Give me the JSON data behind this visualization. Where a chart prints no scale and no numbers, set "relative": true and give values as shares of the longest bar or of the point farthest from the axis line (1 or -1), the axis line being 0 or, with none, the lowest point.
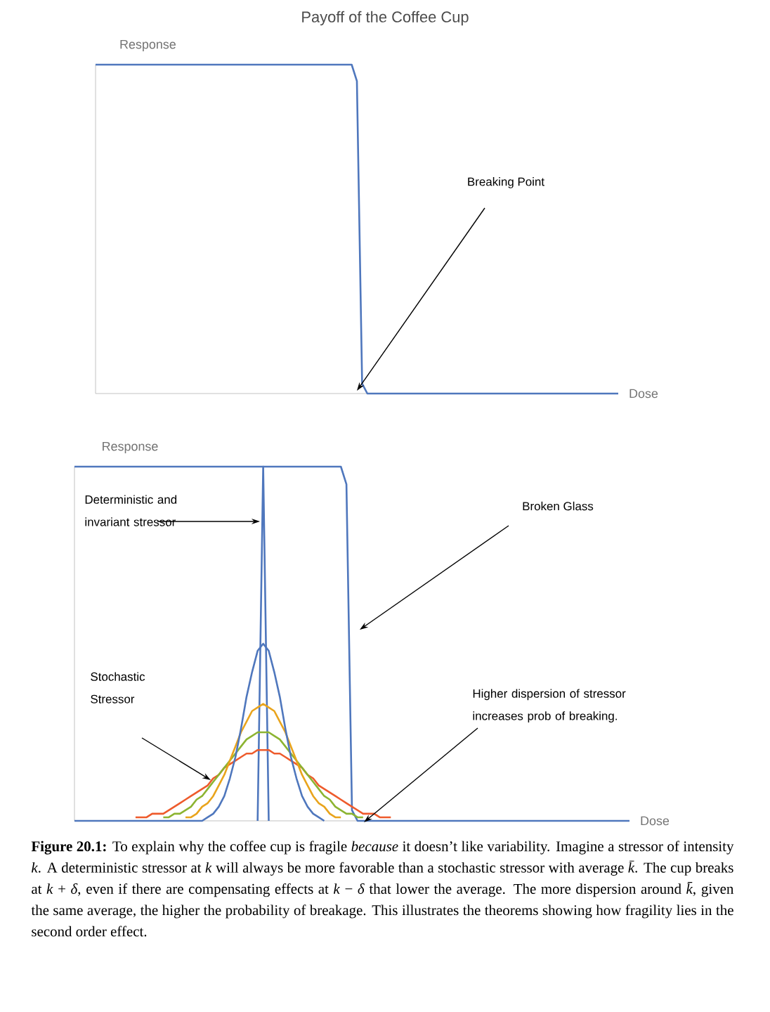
{
  "chart_data": [
    {
      "type": "line",
      "title": "Payoff of the Coffee Cup",
      "xlabel": "Dose",
      "ylabel": "Response",
      "relative": true,
      "tick_labels": false,
      "categories": [
        null,
        null,
        null,
        null,
        null,
        null,
        null,
        null,
        null,
        null,
        null,
        null,
        null,
        null,
        null,
        null,
        null,
        null,
        null,
        null,
        null,
        null,
        null,
        null,
        null,
        null,
        null,
        null,
        null,
        null,
        null,
        null,
        null,
        null,
        null,
        null,
        null,
        null,
        null,
        null,
        null,
        null,
        null,
        null,
        null,
        null,
        null,
        null,
        null,
        null,
        null,
        null,
        null,
        null,
        null,
        null,
        null,
        null,
        null,
        null,
        null,
        null,
        null,
        null,
        null,
        null,
        null,
        null,
        null,
        null,
        null,
        null,
        null,
        null,
        null,
        null,
        null,
        null,
        null,
        null,
        null,
        null,
        null,
        null,
        null,
        null,
        null,
        null,
        null,
        null,
        null,
        null,
        null,
        null,
        null,
        null,
        null,
        null,
        null,
        null,
        null
      ],
      "series": [
        {
          "color": "#4f77bd",
          "values": [
            1,
            1,
            1,
            1,
            1,
            1,
            1,
            1,
            1,
            1,
            1,
            1,
            1,
            1,
            1,
            1,
            1,
            1,
            1,
            1,
            1,
            1,
            1,
            1,
            1,
            1,
            1,
            1,
            1,
            1,
            1,
            1,
            1,
            1,
            1,
            1,
            1,
            1,
            1,
            1,
            1,
            1,
            1,
            1,
            1,
            1,
            1,
            1,
            1,
            1,
            0.95,
            0.03,
            0,
            0,
            0,
            0,
            0,
            0,
            0,
            0,
            0,
            0,
            0,
            0,
            0,
            0,
            0,
            0,
            0,
            0,
            0,
            0,
            0,
            0,
            0,
            0,
            0,
            0,
            0,
            0,
            0,
            0,
            0,
            0,
            0,
            0,
            0,
            0,
            0,
            0,
            0,
            0,
            0,
            0,
            0,
            0,
            0,
            0,
            0,
            0,
            0
          ]
        }
      ],
      "annotations": [
        "Breaking Point"
      ]
    },
    {
      "type": "line",
      "xlabel": "Dose",
      "ylabel": "Response",
      "relative": true,
      "tick_labels": false,
      "categories": [
        null,
        null,
        null,
        null,
        null,
        null,
        null,
        null,
        null,
        null,
        null,
        null,
        null,
        null,
        null,
        null,
        null,
        null,
        null,
        null,
        null,
        null,
        null,
        null,
        null,
        null,
        null,
        null,
        null,
        null,
        null,
        null,
        null,
        null,
        null,
        null,
        null,
        null,
        null,
        null,
        null,
        null,
        null,
        null,
        null,
        null,
        null,
        null,
        null,
        null,
        null,
        null,
        null,
        null,
        null,
        null,
        null,
        null,
        null,
        null,
        null,
        null,
        null,
        null,
        null,
        null,
        null,
        null,
        null,
        null,
        null,
        null,
        null,
        null,
        null,
        null,
        null,
        null,
        null,
        null,
        null,
        null,
        null,
        null,
        null,
        null,
        null,
        null,
        null,
        null,
        null,
        null,
        null,
        null,
        null,
        null,
        null,
        null,
        null,
        null,
        null
      ],
      "series": [
        {
          "color": "#4f77bd",
          "values": [
            1,
            1,
            1,
            1,
            1,
            1,
            1,
            1,
            1,
            1,
            1,
            1,
            1,
            1,
            1,
            1,
            1,
            1,
            1,
            1,
            1,
            1,
            1,
            1,
            1,
            1,
            1,
            1,
            1,
            1,
            1,
            1,
            1,
            1,
            1,
            1,
            1,
            1,
            1,
            1,
            1,
            1,
            1,
            1,
            1,
            1,
            1,
            1,
            1,
            0.95,
            0.03,
            0,
            0,
            0,
            0,
            0,
            0,
            0,
            0,
            0,
            0,
            0,
            0,
            0,
            0,
            0,
            0,
            0,
            0,
            0,
            0,
            0,
            0,
            0,
            0,
            0,
            0,
            0,
            0,
            0,
            0,
            0,
            0,
            0,
            0,
            0,
            0,
            0,
            0,
            0,
            0,
            0,
            0,
            0,
            0,
            0,
            0,
            0,
            0,
            0,
            0
          ]
        },
        {
          "color": "#4f77bd",
          "values": [
            null,
            null,
            null,
            null,
            null,
            null,
            null,
            null,
            null,
            null,
            null,
            null,
            null,
            null,
            null,
            null,
            null,
            null,
            null,
            null,
            null,
            null,
            null,
            null,
            null,
            null,
            null,
            null,
            null,
            null,
            null,
            null,
            null,
            0,
            1,
            0,
            null,
            null,
            null,
            null,
            null,
            null,
            null,
            null,
            null,
            null,
            null,
            null,
            null,
            null,
            null,
            null,
            null,
            null,
            null,
            null,
            null,
            null,
            null,
            null,
            null,
            null,
            null,
            null,
            null,
            null,
            null,
            null,
            null,
            null,
            null,
            null,
            null,
            null,
            null,
            null,
            null,
            null,
            null,
            null,
            null,
            null,
            null,
            null,
            null,
            null,
            null,
            null,
            null,
            null,
            null,
            null,
            null,
            null,
            null,
            null,
            null,
            null,
            null,
            null,
            null
          ]
        },
        {
          "color": "#ee5b2c",
          "values": [
            null,
            null,
            null,
            null,
            null,
            null,
            null,
            null,
            null,
            null,
            null,
            0.01,
            0.01,
            0.01,
            0.02,
            0.02,
            0.02,
            0.03,
            0.04,
            0.05,
            0.06,
            0.07,
            0.08,
            0.09,
            0.1,
            0.12,
            0.13,
            0.15,
            0.16,
            0.17,
            0.18,
            0.19,
            0.19,
            0.2,
            0.2,
            0.2,
            0.19,
            0.19,
            0.18,
            0.17,
            0.16,
            0.15,
            0.13,
            0.12,
            0.1,
            0.09,
            0.08,
            0.07,
            0.06,
            0.05,
            0.04,
            0.03,
            0.02,
            0.02,
            0.02,
            0.01,
            0.01,
            0.01,
            null,
            null,
            null,
            null,
            null,
            null,
            null,
            null,
            null,
            null,
            null,
            null,
            null,
            null,
            null,
            null,
            null,
            null,
            null,
            null,
            null,
            null,
            null,
            null,
            null,
            null,
            null,
            null,
            null,
            null,
            null,
            null,
            null,
            null,
            null,
            null,
            null,
            null,
            null,
            null,
            null,
            null,
            null
          ]
        },
        {
          "color": "#8cb431",
          "values": [
            null,
            null,
            null,
            null,
            null,
            null,
            null,
            null,
            null,
            null,
            null,
            null,
            null,
            null,
            null,
            null,
            0.01,
            0.01,
            0.02,
            0.02,
            0.03,
            0.04,
            0.06,
            0.07,
            0.09,
            0.11,
            0.13,
            0.15,
            0.17,
            0.19,
            0.21,
            0.23,
            0.24,
            0.25,
            0.25,
            0.25,
            0.24,
            0.23,
            0.21,
            0.19,
            0.17,
            0.15,
            0.13,
            0.11,
            0.09,
            0.07,
            0.06,
            0.04,
            0.03,
            0.02,
            0.02,
            0.01,
            0.01,
            null,
            null,
            null,
            null,
            null,
            null,
            null,
            null,
            null,
            null,
            null,
            null,
            null,
            null,
            null,
            null,
            null,
            null,
            null,
            null,
            null,
            null,
            null,
            null,
            null,
            null,
            null,
            null,
            null,
            null,
            null,
            null,
            null,
            null,
            null,
            null,
            null,
            null,
            null,
            null,
            null,
            null,
            null,
            null,
            null,
            null,
            null,
            null
          ]
        },
        {
          "color": "#e9a41c",
          "values": [
            null,
            null,
            null,
            null,
            null,
            null,
            null,
            null,
            null,
            null,
            null,
            null,
            null,
            null,
            null,
            null,
            null,
            null,
            null,
            null,
            0.01,
            0.01,
            0.02,
            0.04,
            0.05,
            0.07,
            0.1,
            0.13,
            0.17,
            0.21,
            0.25,
            0.28,
            0.31,
            0.32,
            0.33,
            0.32,
            0.31,
            0.28,
            0.25,
            0.21,
            0.17,
            0.13,
            0.1,
            0.07,
            0.05,
            0.04,
            0.02,
            0.01,
            0.01,
            null,
            null,
            null,
            null,
            null,
            null,
            null,
            null,
            null,
            null,
            null,
            null,
            null,
            null,
            null,
            null,
            null,
            null,
            null,
            null,
            null,
            null,
            null,
            null,
            null,
            null,
            null,
            null,
            null,
            null,
            null,
            null,
            null,
            null,
            null,
            null,
            null,
            null,
            null,
            null,
            null,
            null,
            null,
            null,
            null,
            null,
            null,
            null,
            null,
            null,
            null,
            null
          ]
        },
        {
          "color": "#4f77bd",
          "values": [
            0,
            0,
            0,
            0,
            0,
            0,
            0,
            0,
            0,
            0,
            0,
            0,
            0,
            0,
            0,
            0,
            0,
            0,
            0,
            0,
            0,
            0,
            0,
            0,
            0.01,
            0.02,
            0.04,
            0.07,
            0.12,
            0.18,
            0.26,
            0.35,
            0.42,
            0.48,
            0.5,
            0.48,
            0.42,
            0.35,
            0.26,
            0.18,
            0.12,
            0.07,
            0.04,
            0.02,
            0.01,
            0,
            null,
            null,
            null,
            null,
            null,
            null,
            null,
            null,
            null,
            null,
            null,
            null,
            null,
            null,
            null,
            null,
            null,
            null,
            null,
            null,
            null,
            null,
            null,
            null,
            null,
            null,
            null,
            null,
            null,
            null,
            null,
            null,
            null,
            null,
            null,
            null,
            null,
            null,
            null,
            null,
            null,
            null,
            null,
            null,
            null,
            null,
            null,
            null,
            null,
            null,
            null,
            null,
            null,
            null,
            null
          ]
        }
      ],
      "annotations": [
        "Deterministic and invariant stressor",
        "Broken Glass",
        "Stochastic Stressor",
        "Higher dispersion of stressor increases prob of breaking.",
        "**Figure 20.1:** To explain why the coffee cup is fragile *because* it doesn’t like variability. Imagine a stressor of intensity *k*. A deterministic stressor at *k* will always be more favorable than a stochastic stressor with average *k̄*. The cup breaks at *k* + *δ*, even if there are compensating effects at *k* − *δ* that lower the average. The more dispersion around *k̄*, given the same average, the higher the probability of breakage. This illustrates the theorems showing how fragility lies in the second order effect."
      ]
    }
  ]
}
